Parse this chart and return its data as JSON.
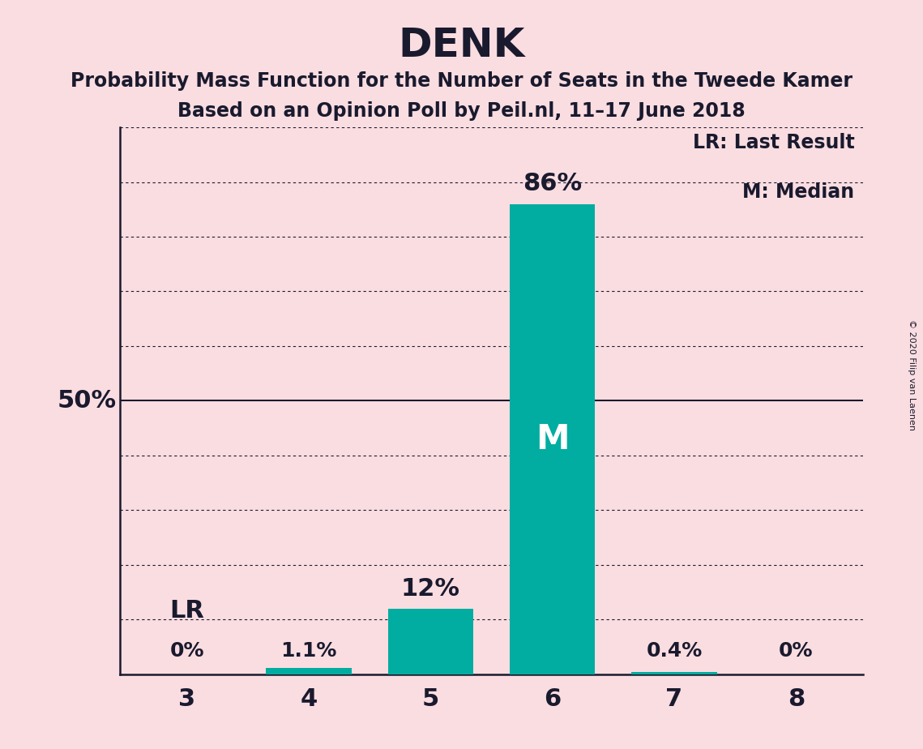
{
  "title": "DENK",
  "subtitle1": "Probability Mass Function for the Number of Seats in the Tweede Kamer",
  "subtitle2": "Based on an Opinion Poll by Peil.nl, 11–17 June 2018",
  "copyright": "© 2020 Filip van Laenen",
  "categories": [
    3,
    4,
    5,
    6,
    7,
    8
  ],
  "values": [
    0.0,
    1.1,
    12.0,
    86.0,
    0.4,
    0.0
  ],
  "bar_color": "#00ADA0",
  "background_color": "#FADDE1",
  "text_color": "#1a1a2e",
  "median_seat": 6,
  "lr_seat": 3,
  "ylim": [
    0,
    100
  ],
  "ytick_values": [
    0,
    10,
    20,
    30,
    40,
    50,
    60,
    70,
    80,
    90,
    100
  ],
  "fifty_pct_line": 50,
  "legend_lr": "LR: Last Result",
  "legend_m": "M: Median",
  "bar_labels": [
    "0%",
    "1.1%",
    "12%",
    "86%",
    "0.4%",
    "0%"
  ],
  "title_fontsize": 36,
  "subtitle_fontsize": 17,
  "label_fontsize_large": 22,
  "label_fontsize_small": 18,
  "xtick_fontsize": 22,
  "legend_fontsize": 17,
  "fifty_label_fontsize": 22,
  "m_fontsize": 30,
  "lr_fontsize": 22
}
